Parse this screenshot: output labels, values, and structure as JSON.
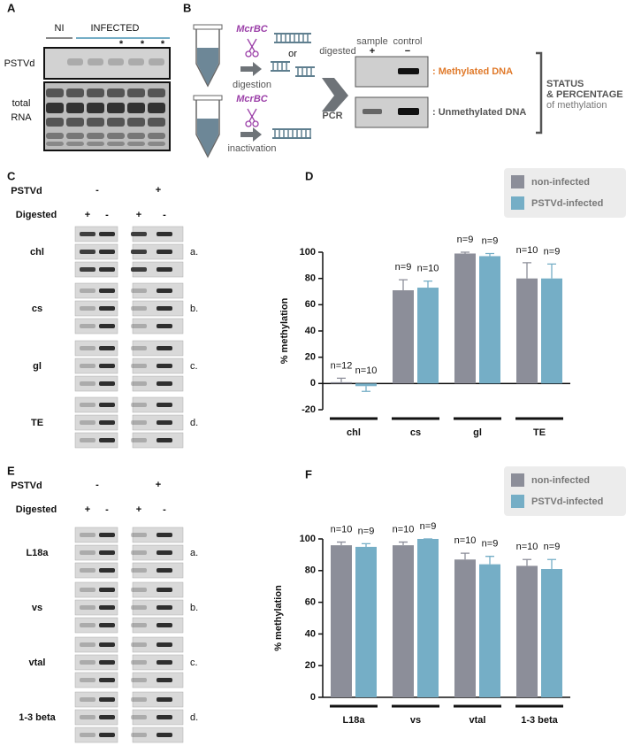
{
  "panel_a": {
    "label": "A",
    "ni": "NI",
    "infected": "INFECTED",
    "asterisks": [
      "*",
      "*",
      "*"
    ],
    "rows": [
      "PSTVd",
      [
        "total",
        "RNA"
      ]
    ]
  },
  "panel_b": {
    "label": "B",
    "enzyme_labels": [
      "McrBC",
      "McrBC"
    ],
    "steps": [
      "digestion",
      "inactivation"
    ],
    "or": "or",
    "pcr": "PCR",
    "digested": "digested",
    "gel_columns": [
      "sample",
      "control"
    ],
    "gel_signs": [
      "+",
      "−"
    ],
    "results": [
      ": Methylated DNA",
      ": Unmethylated DNA"
    ],
    "summary": [
      "STATUS",
      "& PERCENTAGE",
      "of methylation"
    ]
  },
  "panel_c": {
    "label": "C",
    "pstvd_label": "PSTVd",
    "pstvd_signs": [
      "-",
      "+"
    ],
    "digested_label": "Digested",
    "digested_signs": [
      "+",
      "-",
      "+",
      "-"
    ],
    "genes": [
      "chl",
      "cs",
      "gl",
      "TE"
    ],
    "row_letters": [
      "a.",
      "b.",
      "c.",
      "d."
    ]
  },
  "panel_e": {
    "label": "E",
    "pstvd_label": "PSTVd",
    "pstvd_signs": [
      "-",
      "+"
    ],
    "digested_label": "Digested",
    "digested_signs": [
      "+",
      "-",
      "+",
      "-"
    ],
    "genes": [
      "L18a",
      "vs",
      "vtal",
      "1-3 beta"
    ],
    "row_letters": [
      "a.",
      "b.",
      "c.",
      "d."
    ]
  },
  "chart_data": [
    {
      "type": "bar",
      "panel_label": "D",
      "y_label": "% methylation",
      "categories": [
        "chl",
        "cs",
        "gl",
        "TE"
      ],
      "series": [
        {
          "name": "non-infected",
          "color": "#8c8e99",
          "values": [
            1,
            71,
            99,
            80
          ],
          "errors": [
            3,
            8,
            1,
            12
          ],
          "n_labels": [
            "n=12",
            "n=9",
            "n=9",
            "n=10"
          ]
        },
        {
          "name": "PSTVd-infected",
          "color": "#75aec6",
          "values": [
            -2,
            73,
            97,
            80
          ],
          "errors": [
            4,
            5,
            2,
            11
          ],
          "n_labels": [
            "n=10",
            "n=10",
            "n=9",
            "n=9"
          ]
        }
      ],
      "ylim": [
        -20,
        100
      ],
      "yticks": [
        -20,
        0,
        20,
        40,
        60,
        80,
        100
      ]
    },
    {
      "type": "bar",
      "panel_label": "F",
      "y_label": "% methylation",
      "categories": [
        "L18a",
        "vs",
        "vtal",
        "1-3 beta"
      ],
      "series": [
        {
          "name": "non-infected",
          "color": "#8c8e99",
          "values": [
            96,
            96,
            87,
            83
          ],
          "errors": [
            2,
            2,
            4,
            4
          ],
          "n_labels": [
            "n=10",
            "n=10",
            "n=10",
            "n=10"
          ]
        },
        {
          "name": "PSTVd-infected",
          "color": "#75aec6",
          "values": [
            95,
            100,
            84,
            81
          ],
          "errors": [
            2,
            0,
            5,
            6
          ],
          "n_labels": [
            "n=9",
            "n=9",
            "n=9",
            "n=9"
          ]
        }
      ],
      "ylim": [
        0,
        100
      ],
      "yticks": [
        0,
        20,
        40,
        60,
        80,
        100
      ]
    }
  ]
}
